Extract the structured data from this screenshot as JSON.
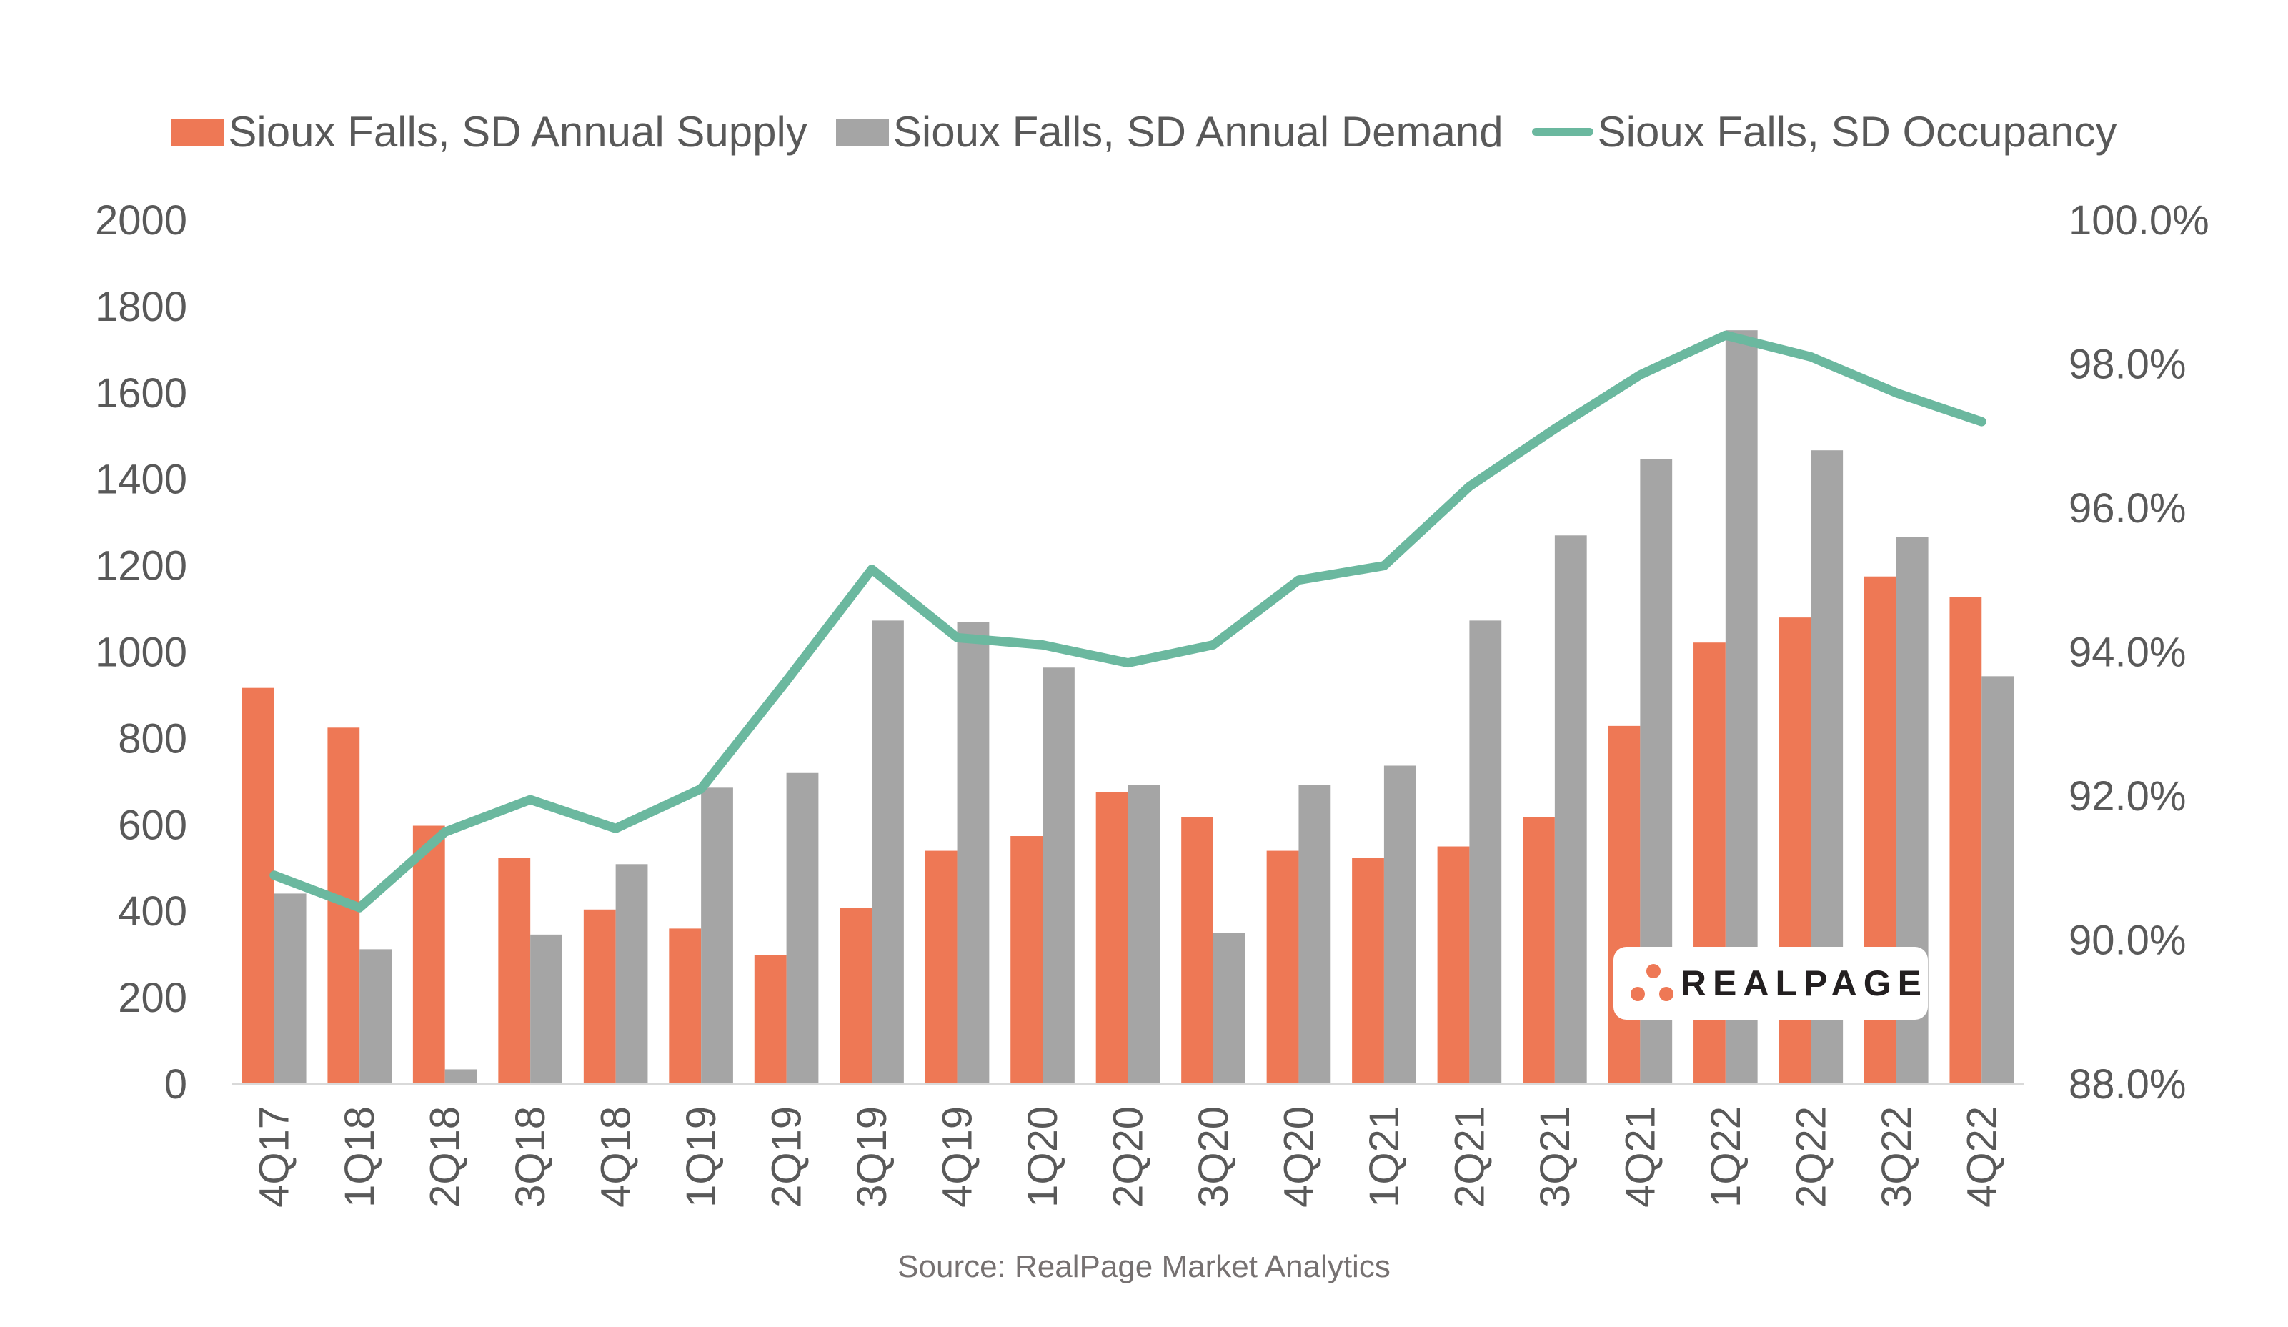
{
  "chart_data": {
    "type": "bar",
    "title": "",
    "xlabel": "",
    "ylabel": "",
    "y2label": "",
    "categories": [
      "4Q17",
      "1Q18",
      "2Q18",
      "3Q18",
      "4Q18",
      "1Q19",
      "2Q19",
      "3Q19",
      "4Q19",
      "1Q20",
      "2Q20",
      "3Q20",
      "4Q20",
      "1Q21",
      "2Q21",
      "3Q21",
      "4Q21",
      "1Q22",
      "2Q22",
      "3Q22",
      "4Q22"
    ],
    "ylim": [
      0,
      2000
    ],
    "yticks": [
      "0",
      "200",
      "400",
      "600",
      "800",
      "1000",
      "1200",
      "1400",
      "1600",
      "1800",
      "2000"
    ],
    "y2lim": [
      88,
      100
    ],
    "y2ticks": [
      "88.0%",
      "90.0%",
      "92.0%",
      "94.0%",
      "96.0%",
      "98.0%",
      "100.0%"
    ],
    "grid": false,
    "legend_position": "top-center",
    "series": [
      {
        "name": "Sioux Falls, SD Annual Supply",
        "type": "bar",
        "axis": "left",
        "color": "#ee7855",
        "values": [
          917,
          825,
          598,
          523,
          404,
          360,
          299,
          407,
          540,
          574,
          676,
          618,
          540,
          523,
          550,
          618,
          829,
          1022,
          1080,
          1175,
          1127
        ]
      },
      {
        "name": "Sioux Falls, SD Annual Demand",
        "type": "bar",
        "axis": "left",
        "color": "#a5a5a5",
        "values": [
          441,
          312,
          34,
          346,
          509,
          686,
          720,
          1073,
          1070,
          964,
          693,
          350,
          693,
          737,
          1073,
          1270,
          1447,
          1745,
          1467,
          1267,
          944
        ]
      },
      {
        "name": "Sioux Falls, SD Occupancy",
        "type": "line",
        "axis": "right",
        "color": "#6bb89f",
        "values": [
          90.9,
          90.45,
          91.5,
          91.95,
          91.55,
          92.1,
          93.6,
          95.15,
          94.2,
          94.1,
          93.85,
          94.1,
          95.0,
          95.2,
          96.3,
          97.1,
          97.85,
          98.4,
          98.1,
          97.6,
          97.2
        ]
      }
    ],
    "source": "Source: RealPage Market Analytics"
  },
  "logo": {
    "text": "REALPAGE",
    "mark": "®"
  }
}
